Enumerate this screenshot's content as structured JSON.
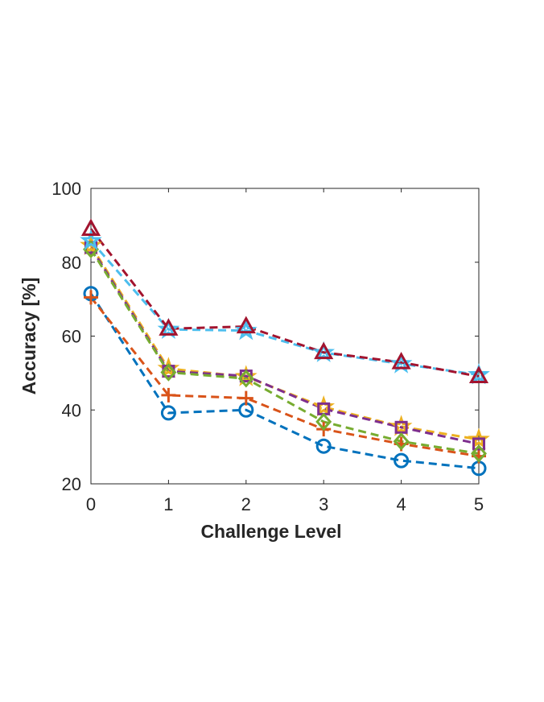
{
  "chart_data": {
    "type": "line",
    "title": "",
    "xlabel": "Challenge Level",
    "ylabel": "Accuracy [%]",
    "xlim": [
      0,
      5
    ],
    "ylim": [
      20,
      100
    ],
    "xticks": [
      0,
      1,
      2,
      3,
      4,
      5
    ],
    "yticks": [
      20,
      40,
      60,
      80,
      100
    ],
    "grid": false,
    "legend": "none",
    "x": [
      0,
      1,
      2,
      3,
      4,
      5
    ],
    "series": [
      {
        "values": [
          71.5,
          39.2,
          40.0,
          30.2,
          26.3,
          24.2
        ],
        "color": "#0072BD",
        "marker": "circle"
      },
      {
        "values": [
          70.5,
          44.0,
          43.2,
          34.8,
          30.8,
          27.5
        ],
        "color": "#D95319",
        "marker": "plus"
      },
      {
        "values": [
          84.5,
          51.2,
          49.0,
          40.8,
          35.5,
          32.0
        ],
        "color": "#EDB120",
        "marker": "star"
      },
      {
        "values": [
          84.0,
          50.5,
          49.2,
          40.3,
          35.3,
          30.8
        ],
        "color": "#7E2F8E",
        "marker": "square"
      },
      {
        "values": [
          83.5,
          50.2,
          48.5,
          36.8,
          31.5,
          28.2
        ],
        "color": "#77AC30",
        "marker": "diamond"
      },
      {
        "values": [
          85.8,
          61.8,
          61.5,
          55.5,
          52.5,
          49.5
        ],
        "color": "#4DBEEE",
        "marker": "star"
      },
      {
        "values": [
          89.0,
          62.0,
          62.6,
          55.6,
          52.9,
          49.1
        ],
        "color": "#A2142F",
        "marker": "triangle"
      }
    ]
  }
}
